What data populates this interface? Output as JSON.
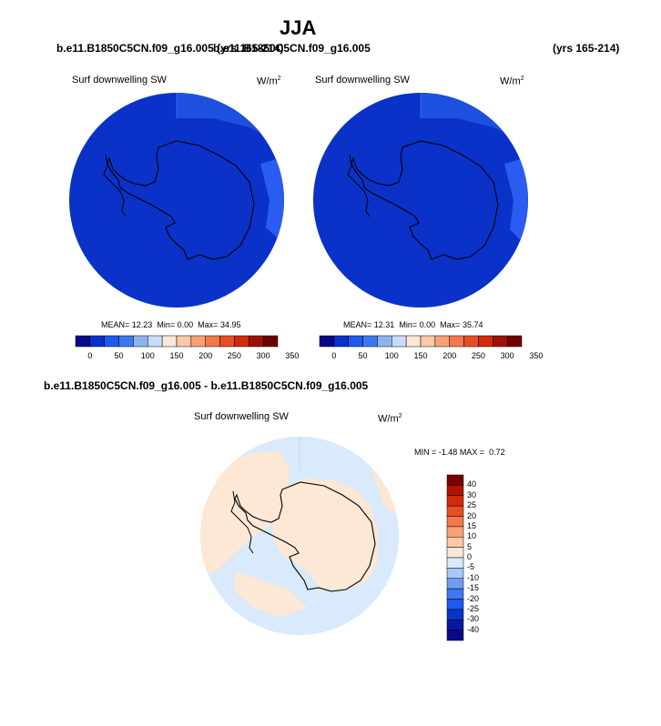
{
  "title": "JJA",
  "top_case_left": "b.e11.B1850C5CN.f09_g16.005 (yrs 165-214)",
  "top_case_right": "b.e11.B1850C5CN.f09_g16.005",
  "top_case_right_years": "(yrs 165-214)",
  "diff_case_title": "b.e11.B1850C5CN.f09_g16.005 - b.e11.B1850C5CN.f09_g16.005",
  "colors": {
    "ocean_top": "#0a32c8",
    "ocean_top_light": "#1e50e0",
    "diff_pos": "#fde7d5",
    "diff_neg": "#d8eafb"
  },
  "chart_data": [
    {
      "type": "heatmap",
      "projection": "south-polar-stereographic",
      "variable": "Surf downwelling SW",
      "units": "W/m",
      "units_exp": "2",
      "stats": {
        "mean_label": "MEAN=",
        "mean": "12.23",
        "min_label": "Min=",
        "min": "0.00",
        "max_label": "Max=",
        "max": "34.95"
      },
      "colorbar_ticks": [
        "0",
        "50",
        "100",
        "150",
        "200",
        "250",
        "300",
        "350"
      ],
      "colorbar_colors": [
        "#08088a",
        "#0a32c8",
        "#1e5af0",
        "#3c78f0",
        "#8cb4f0",
        "#c8dcf8",
        "#fde7d5",
        "#fbc8a8",
        "#f8a078",
        "#f47848",
        "#e84e22",
        "#d42a0a",
        "#a01004",
        "#700000"
      ]
    },
    {
      "type": "heatmap",
      "projection": "south-polar-stereographic",
      "variable": "Surf downwelling SW",
      "units": "W/m",
      "units_exp": "2",
      "stats": {
        "mean_label": "MEAN=",
        "mean": "12.31",
        "min_label": "Min=",
        "min": "0.00",
        "max_label": "Max=",
        "max": "35.74"
      },
      "colorbar_ticks": [
        "0",
        "50",
        "100",
        "150",
        "200",
        "250",
        "300",
        "350"
      ],
      "colorbar_colors": [
        "#08088a",
        "#0a32c8",
        "#1e5af0",
        "#3c78f0",
        "#8cb4f0",
        "#c8dcf8",
        "#fde7d5",
        "#fbc8a8",
        "#f8a078",
        "#f47848",
        "#e84e22",
        "#d42a0a",
        "#a01004",
        "#700000"
      ]
    },
    {
      "type": "heatmap",
      "projection": "south-polar-stereographic",
      "variable": "Surf downwelling SW",
      "units": "W/m",
      "units_exp": "2",
      "stats": {
        "min_label": "MIN =",
        "min": "-1.48",
        "max_label": "MAX =",
        "max": "0.72"
      },
      "colorbar_ticks": [
        "40",
        "30",
        "25",
        "20",
        "15",
        "10",
        "5",
        "0",
        "-5",
        "-10",
        "-15",
        "-20",
        "-25",
        "-30",
        "-40"
      ],
      "colorbar_colors": [
        "#7a0000",
        "#b01404",
        "#d42a0a",
        "#e84e22",
        "#f47848",
        "#f8a078",
        "#fbc8a8",
        "#fde7d5",
        "#d8eafb",
        "#a8c8f8",
        "#6e9cf0",
        "#3c78f0",
        "#1e5af0",
        "#0a32c8",
        "#0818a0",
        "#08088a"
      ]
    }
  ]
}
